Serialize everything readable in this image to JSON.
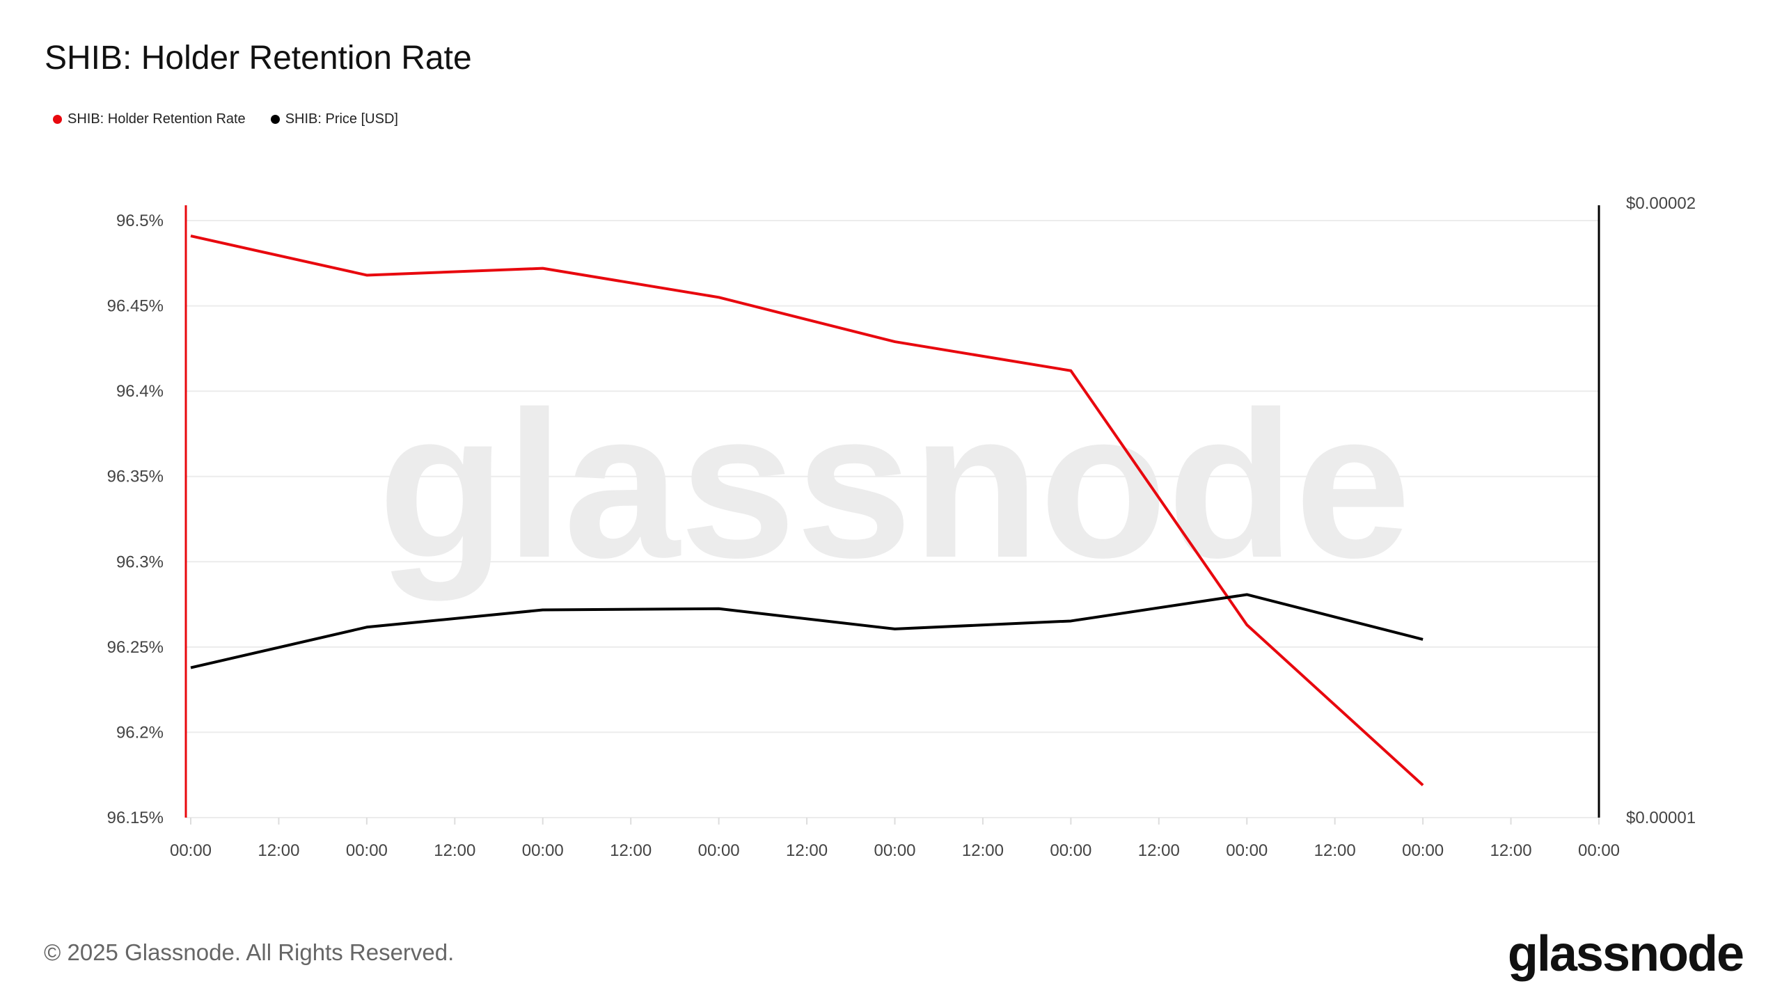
{
  "chart_data": {
    "type": "line",
    "title": "SHIB: Holder Retention Rate",
    "x_tick_labels": [
      "00:00",
      "12:00",
      "00:00",
      "12:00",
      "00:00",
      "12:00",
      "00:00",
      "12:00",
      "00:00",
      "12:00",
      "00:00",
      "12:00",
      "00:00",
      "12:00",
      "00:00",
      "12:00",
      "00:00"
    ],
    "x_point_index": [
      0,
      1,
      2,
      3,
      4,
      5,
      6,
      7
    ],
    "y_left": {
      "ticks": [
        96.5,
        96.45,
        96.4,
        96.35,
        96.3,
        96.25,
        96.2,
        96.15
      ],
      "tick_labels": [
        "96.5%",
        "96.45%",
        "96.4%",
        "96.35%",
        "96.3%",
        "96.25%",
        "96.2%",
        "96.15%"
      ],
      "range": [
        96.15,
        96.5
      ]
    },
    "y_right": {
      "tick_labels": [
        "$0.00002",
        "$0.00001"
      ],
      "range": [
        1e-05,
        2e-05
      ]
    },
    "series": [
      {
        "name": "SHIB: Holder Retention Rate",
        "color": "#e8080e",
        "axis": "left",
        "values": [
          96.491,
          96.468,
          96.472,
          96.455,
          96.429,
          96.412,
          96.263,
          96.169
        ]
      },
      {
        "name": "SHIB: Price [USD]",
        "color": "#000000",
        "axis": "right",
        "values": [
          1.244e-05,
          1.31e-05,
          1.338e-05,
          1.34e-05,
          1.307e-05,
          1.32e-05,
          1.363e-05,
          1.29e-05
        ]
      }
    ],
    "grid": true,
    "legend_position": "top-left",
    "watermark": "glassnode"
  },
  "footer": {
    "copyright": "© 2025 Glassnode. All Rights Reserved.",
    "logo": "glassnode"
  }
}
